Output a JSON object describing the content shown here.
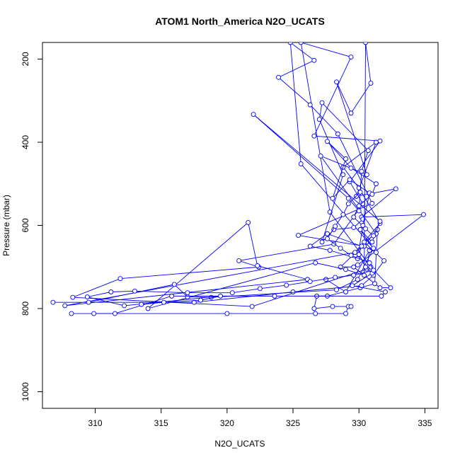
{
  "chart_data": {
    "type": "line",
    "title": "ATOM1 North_America N2O_UCATS",
    "xlabel": "N2O_UCATS",
    "ylabel": "Pressure (mbar)",
    "xlim": [
      306,
      336
    ],
    "ylim": [
      1040,
      160
    ],
    "y_reversed": true,
    "x_ticks": [
      310,
      315,
      320,
      325,
      330,
      335
    ],
    "y_ticks": [
      200,
      400,
      600,
      800,
      1000
    ],
    "grid": false,
    "legend": "none",
    "marker": "open-circle",
    "color": "#0000ff",
    "series": [
      {
        "values": [
          [
            308.2,
            812
          ],
          [
            320.0,
            812
          ],
          [
            326.7,
            812
          ],
          [
            329.0,
            812
          ],
          [
            329.2,
            795
          ],
          [
            329.4,
            795
          ],
          [
            328.0,
            795
          ],
          [
            326.6,
            800
          ],
          [
            326.8,
            770
          ],
          [
            327.6,
            770
          ],
          [
            330.1,
            750
          ],
          [
            331.2,
            740
          ],
          [
            331.4,
            610
          ],
          [
            330.6,
            640
          ],
          [
            328.6,
            700
          ],
          [
            329.6,
            700
          ],
          [
            331.6,
            750
          ],
          [
            332.4,
            750
          ],
          [
            330.9,
            700
          ],
          [
            327.8,
            568
          ],
          [
            325.6,
            160
          ],
          [
            329.4,
            195
          ],
          [
            326.6,
            385
          ],
          [
            331.6,
            397
          ],
          [
            329.3,
            495
          ],
          [
            330.3,
            548
          ],
          [
            328.1,
            645
          ],
          [
            320.9,
            685
          ],
          [
            322.4,
            700
          ],
          [
            311.9,
            728
          ],
          [
            308.3,
            773
          ],
          [
            321.9,
            795
          ],
          [
            330.6,
            705
          ],
          [
            330.8,
            660
          ],
          [
            329.0,
            760
          ],
          [
            327.5,
            730
          ]
        ]
      },
      {
        "values": [
          [
            306.8,
            785
          ],
          [
            317.5,
            785
          ],
          [
            325.0,
            760
          ],
          [
            330.2,
            745
          ],
          [
            331.1,
            720
          ],
          [
            331.9,
            685
          ],
          [
            330.4,
            640
          ],
          [
            331.3,
            620
          ],
          [
            327.1,
            433
          ],
          [
            330.6,
            478
          ],
          [
            328.3,
            255
          ],
          [
            329.4,
            330
          ],
          [
            330.9,
            258
          ],
          [
            330.5,
            160
          ],
          [
            330.4,
            720
          ],
          [
            329.0,
            706
          ],
          [
            326.7,
            690
          ],
          [
            314.0,
            800
          ],
          [
            321.6,
            593
          ],
          [
            322.3,
            697
          ],
          [
            326.1,
            730
          ],
          [
            307.7,
            793
          ],
          [
            329.7,
            665
          ],
          [
            331.6,
            595
          ],
          [
            330.0,
            510
          ],
          [
            328.8,
            460
          ],
          [
            331.3,
            400
          ],
          [
            329.8,
            530
          ],
          [
            332.8,
            512
          ],
          [
            330.2,
            580
          ],
          [
            334.9,
            574
          ],
          [
            329.9,
            695
          ]
        ]
      },
      {
        "values": [
          [
            309.5,
            785
          ],
          [
            316.0,
            742
          ],
          [
            317.0,
            772
          ],
          [
            318.8,
            773
          ],
          [
            328.3,
            755
          ],
          [
            329.9,
            730
          ],
          [
            331.1,
            655
          ],
          [
            325.6,
            452
          ],
          [
            324.8,
            160
          ],
          [
            326.6,
            203
          ],
          [
            323.9,
            244
          ],
          [
            326.3,
            310
          ],
          [
            328.4,
            380
          ],
          [
            331.0,
            547
          ],
          [
            325.4,
            624
          ],
          [
            330.4,
            650
          ],
          [
            331.3,
            665
          ],
          [
            330.1,
            610
          ],
          [
            331.0,
            640
          ],
          [
            331.6,
            590
          ],
          [
            322.0,
            333
          ],
          [
            329.2,
            535
          ],
          [
            330.0,
            565
          ],
          [
            330.2,
            470
          ],
          [
            330.7,
            420
          ],
          [
            327.2,
            305
          ],
          [
            327.0,
            345
          ],
          [
            328.8,
            478
          ],
          [
            327.2,
            640
          ],
          [
            328.1,
            610
          ],
          [
            329.6,
            605
          ],
          [
            330.3,
            585
          ]
        ]
      },
      {
        "values": [
          [
            309.9,
            812
          ],
          [
            311.5,
            812
          ],
          [
            315.8,
            770
          ],
          [
            323.6,
            770
          ],
          [
            331.7,
            770
          ],
          [
            332.0,
            760
          ],
          [
            329.5,
            745
          ],
          [
            331.0,
            715
          ],
          [
            330.5,
            700
          ],
          [
            330.0,
            670
          ],
          [
            330.2,
            650
          ],
          [
            327.6,
            620
          ],
          [
            326.3,
            650
          ],
          [
            327.8,
            660
          ],
          [
            329.9,
            680
          ],
          [
            330.3,
            600
          ],
          [
            330.8,
            522
          ],
          [
            329.3,
            490
          ],
          [
            328.0,
            535
          ],
          [
            329.0,
            440
          ],
          [
            327.6,
            398
          ],
          [
            329.4,
            462
          ],
          [
            331.3,
            500
          ],
          [
            331.0,
            525
          ],
          [
            330.0,
            553
          ],
          [
            329.6,
            580
          ],
          [
            330.5,
            608
          ],
          [
            331.1,
            625
          ]
        ]
      },
      {
        "values": [
          [
            313.5,
            790
          ],
          [
            315.2,
            785
          ],
          [
            318.0,
            780
          ],
          [
            319.5,
            770
          ],
          [
            312.2,
            793
          ],
          [
            309.4,
            772
          ],
          [
            311.2,
            760
          ],
          [
            313.0,
            758
          ],
          [
            317.0,
            762
          ],
          [
            320.4,
            762
          ],
          [
            322.5,
            752
          ],
          [
            324.5,
            744
          ],
          [
            326.3,
            735
          ],
          [
            328.2,
            725
          ],
          [
            329.6,
            720
          ],
          [
            331.1,
            708
          ],
          [
            330.8,
            690
          ],
          [
            329.4,
            672
          ],
          [
            328.6,
            655
          ],
          [
            327.6,
            632
          ],
          [
            328.2,
            602
          ],
          [
            328.8,
            574
          ],
          [
            329.2,
            548
          ],
          [
            330.1,
            520
          ]
        ]
      }
    ]
  }
}
